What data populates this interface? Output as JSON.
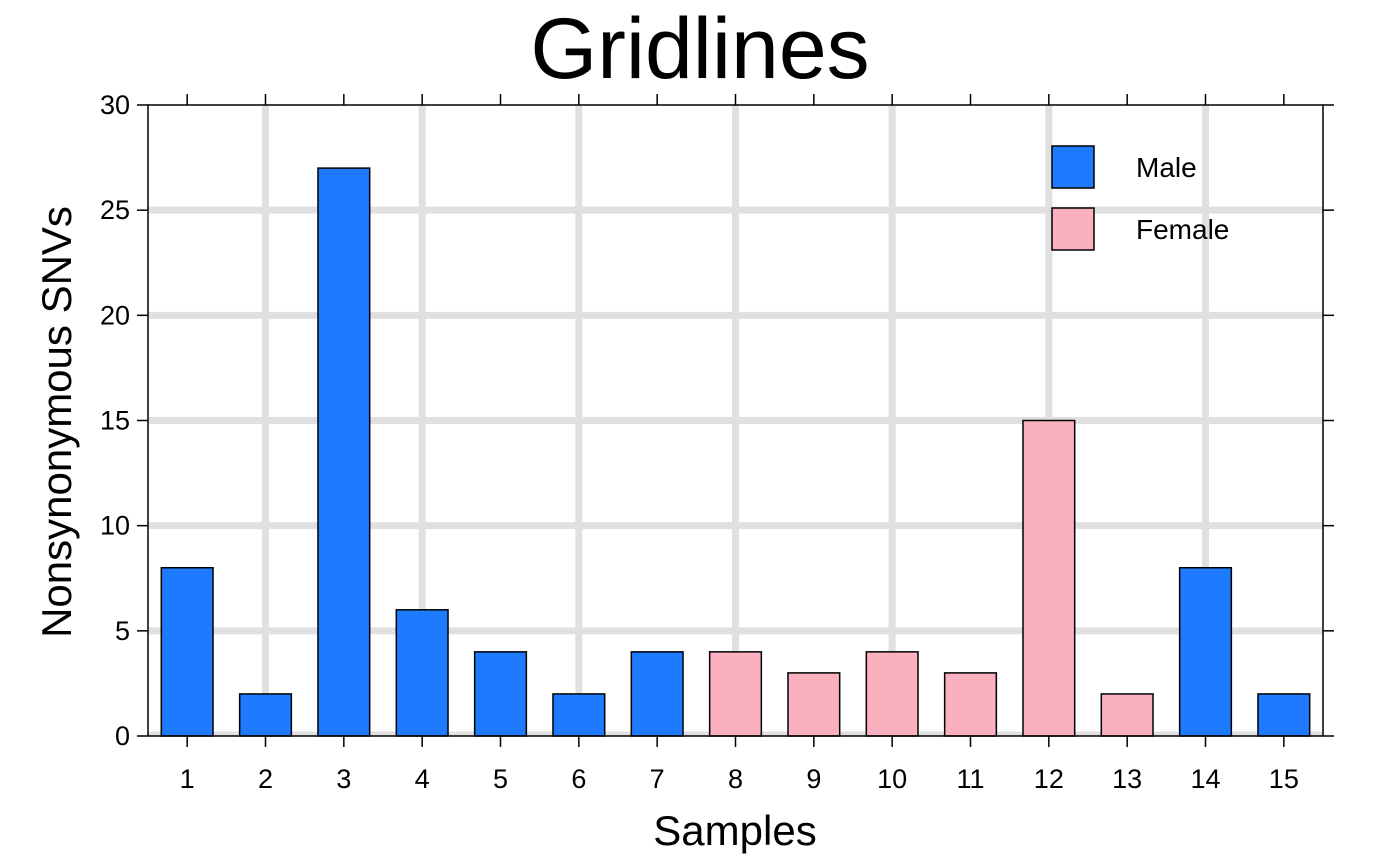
{
  "chart_data": {
    "type": "bar",
    "title": "Gridlines",
    "xlabel": "Samples",
    "ylabel": "Nonsynonymous SNVs",
    "categories": [
      "1",
      "2",
      "3",
      "4",
      "5",
      "6",
      "7",
      "8",
      "9",
      "10",
      "11",
      "12",
      "13",
      "14",
      "15"
    ],
    "values": [
      8,
      2,
      27,
      6,
      4,
      2,
      4,
      4,
      3,
      4,
      3,
      15,
      2,
      8,
      2
    ],
    "groups": [
      "Male",
      "Male",
      "Male",
      "Male",
      "Male",
      "Male",
      "Male",
      "Female",
      "Female",
      "Female",
      "Female",
      "Female",
      "Female",
      "Male",
      "Male"
    ],
    "ylim": [
      0,
      30
    ],
    "yticks": [
      0,
      5,
      10,
      15,
      20,
      25,
      30
    ],
    "grid": true,
    "legend": {
      "placement": "top-right",
      "entries": [
        {
          "label": "Male",
          "color": "#1e7bff"
        },
        {
          "label": "Female",
          "color": "#fbb0c0"
        }
      ]
    },
    "colors": {
      "Male": "#1e7bff",
      "Female": "#fbb0c0",
      "grid": "#e0e0e0"
    }
  }
}
